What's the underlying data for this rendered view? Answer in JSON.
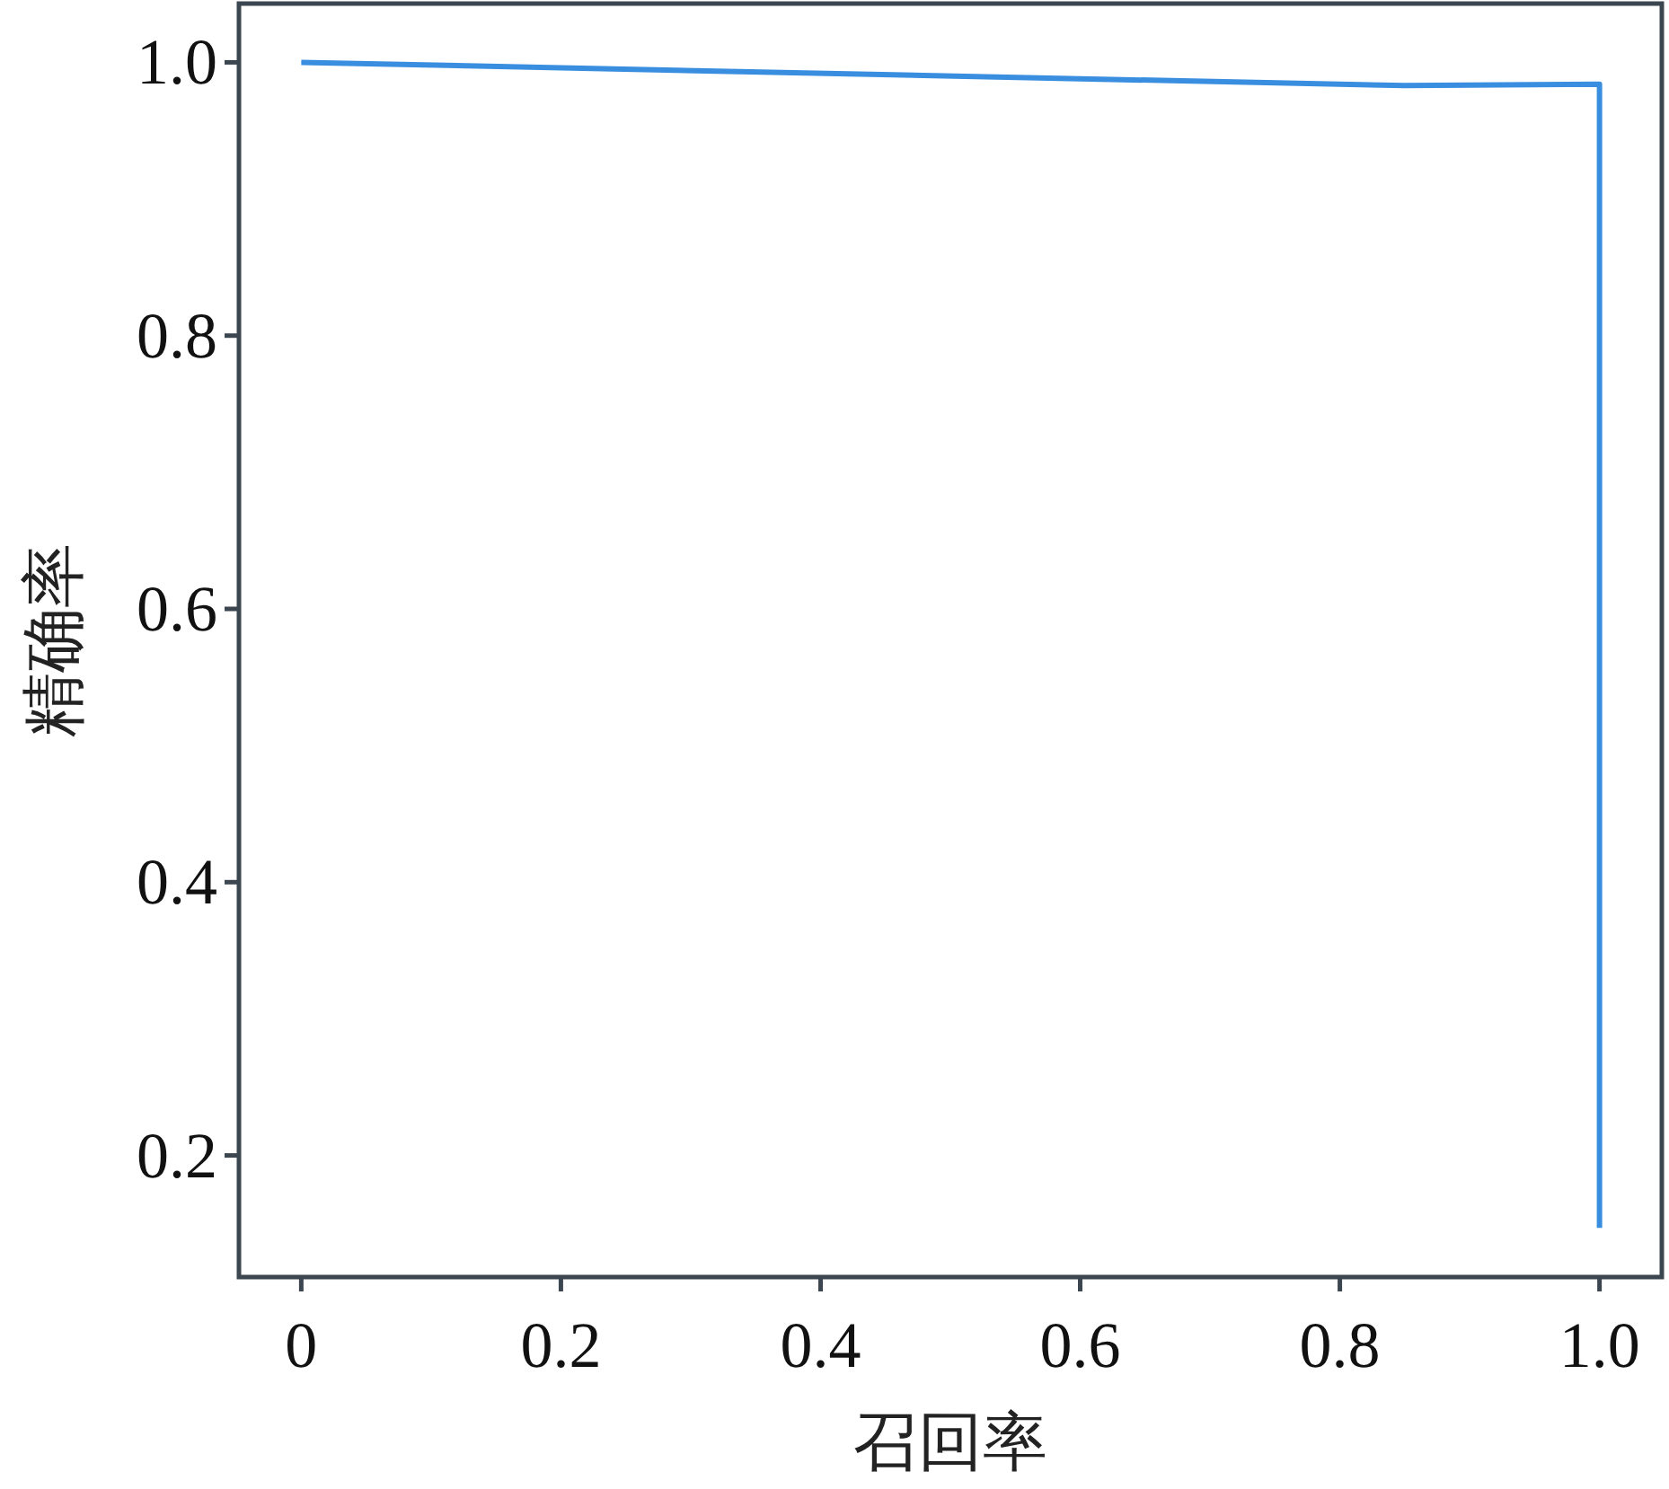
{
  "chart_data": {
    "type": "line",
    "xlabel": "召回率",
    "ylabel": "精确率",
    "xlim": [
      -0.048,
      1.048
    ],
    "ylim": [
      0.111,
      1.043
    ],
    "xticks": [
      0,
      0.2,
      0.4,
      0.6,
      0.8,
      {
        "value": 1,
        "label": "1.0"
      }
    ],
    "yticks": [
      0.2,
      0.4,
      0.6,
      0.8,
      {
        "value": 1,
        "label": "1.0"
      }
    ],
    "series": [
      {
        "color": "#3a8ee0",
        "x": [
          0,
          0.85,
          1,
          1
        ],
        "values": [
          1,
          0.983,
          0.984,
          0.147
        ]
      }
    ]
  }
}
